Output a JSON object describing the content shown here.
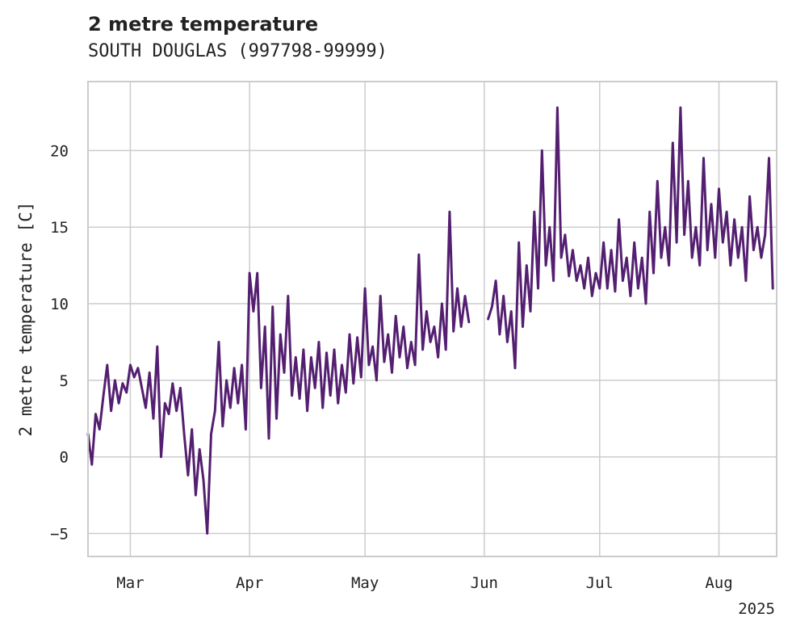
{
  "chart_data": {
    "type": "line",
    "title": "2 metre temperature",
    "subtitle": "SOUTH DOUGLAS (997798-99999)",
    "xlabel": "",
    "ylabel": "2 metre temperature [C]",
    "xlim": [
      "2025-02-18",
      "2025-08-16"
    ],
    "ylim": [
      -6.5,
      24.5
    ],
    "yticks": [
      -5,
      0,
      5,
      10,
      15,
      20
    ],
    "xticks": [
      {
        "date": "2025-03-01",
        "label": "Mar"
      },
      {
        "date": "2025-04-01",
        "label": "Apr"
      },
      {
        "date": "2025-05-01",
        "label": "May"
      },
      {
        "date": "2025-06-01",
        "label": "Jun"
      },
      {
        "date": "2025-07-01",
        "label": "Jul"
      },
      {
        "date": "2025-08-01",
        "label": "Aug"
      }
    ],
    "year_label": "2025",
    "grid": true,
    "line_color": "#541f70",
    "gap": [
      "2025-05-28",
      "2025-06-02"
    ],
    "series": [
      {
        "values": [
          [
            "2025-02-18",
            1.5
          ],
          [
            "2025-02-19",
            -0.5
          ],
          [
            "2025-02-20",
            2.8
          ],
          [
            "2025-02-21",
            1.8
          ],
          [
            "2025-02-22",
            4.0
          ],
          [
            "2025-02-23",
            6.0
          ],
          [
            "2025-02-24",
            3.0
          ],
          [
            "2025-02-25",
            5.0
          ],
          [
            "2025-02-26",
            3.5
          ],
          [
            "2025-02-27",
            4.8
          ],
          [
            "2025-02-28",
            4.2
          ],
          [
            "2025-03-01",
            6.0
          ],
          [
            "2025-03-02",
            5.2
          ],
          [
            "2025-03-03",
            5.8
          ],
          [
            "2025-03-04",
            4.5
          ],
          [
            "2025-03-05",
            3.2
          ],
          [
            "2025-03-06",
            5.5
          ],
          [
            "2025-03-07",
            2.5
          ],
          [
            "2025-03-08",
            7.2
          ],
          [
            "2025-03-09",
            0.0
          ],
          [
            "2025-03-10",
            3.5
          ],
          [
            "2025-03-11",
            2.8
          ],
          [
            "2025-03-12",
            4.8
          ],
          [
            "2025-03-13",
            3.0
          ],
          [
            "2025-03-14",
            4.5
          ],
          [
            "2025-03-15",
            1.5
          ],
          [
            "2025-03-16",
            -1.2
          ],
          [
            "2025-03-17",
            1.8
          ],
          [
            "2025-03-18",
            -2.5
          ],
          [
            "2025-03-19",
            0.5
          ],
          [
            "2025-03-20",
            -1.5
          ],
          [
            "2025-03-21",
            -5.0
          ],
          [
            "2025-03-22",
            1.5
          ],
          [
            "2025-03-23",
            3.0
          ],
          [
            "2025-03-24",
            7.5
          ],
          [
            "2025-03-25",
            2.0
          ],
          [
            "2025-03-26",
            5.0
          ],
          [
            "2025-03-27",
            3.2
          ],
          [
            "2025-03-28",
            5.8
          ],
          [
            "2025-03-29",
            3.5
          ],
          [
            "2025-03-30",
            6.0
          ],
          [
            "2025-03-31",
            1.8
          ],
          [
            "2025-04-01",
            12.0
          ],
          [
            "2025-04-02",
            9.5
          ],
          [
            "2025-04-03",
            12.0
          ],
          [
            "2025-04-04",
            4.5
          ],
          [
            "2025-04-05",
            8.5
          ],
          [
            "2025-04-06",
            1.2
          ],
          [
            "2025-04-07",
            9.8
          ],
          [
            "2025-04-08",
            2.5
          ],
          [
            "2025-04-09",
            8.0
          ],
          [
            "2025-04-10",
            5.5
          ],
          [
            "2025-04-11",
            10.5
          ],
          [
            "2025-04-12",
            4.0
          ],
          [
            "2025-04-13",
            6.5
          ],
          [
            "2025-04-14",
            3.8
          ],
          [
            "2025-04-15",
            7.0
          ],
          [
            "2025-04-16",
            3.0
          ],
          [
            "2025-04-17",
            6.5
          ],
          [
            "2025-04-18",
            4.5
          ],
          [
            "2025-04-19",
            7.5
          ],
          [
            "2025-04-20",
            3.2
          ],
          [
            "2025-04-21",
            6.8
          ],
          [
            "2025-04-22",
            4.0
          ],
          [
            "2025-04-23",
            7.0
          ],
          [
            "2025-04-24",
            3.5
          ],
          [
            "2025-04-25",
            6.0
          ],
          [
            "2025-04-26",
            4.2
          ],
          [
            "2025-04-27",
            8.0
          ],
          [
            "2025-04-28",
            4.8
          ],
          [
            "2025-04-29",
            7.8
          ],
          [
            "2025-04-30",
            5.2
          ],
          [
            "2025-05-01",
            11.0
          ],
          [
            "2025-05-02",
            6.0
          ],
          [
            "2025-05-03",
            7.2
          ],
          [
            "2025-05-04",
            5.0
          ],
          [
            "2025-05-05",
            10.5
          ],
          [
            "2025-05-06",
            6.2
          ],
          [
            "2025-05-07",
            8.0
          ],
          [
            "2025-05-08",
            5.5
          ],
          [
            "2025-05-09",
            9.2
          ],
          [
            "2025-05-10",
            6.5
          ],
          [
            "2025-05-11",
            8.5
          ],
          [
            "2025-05-12",
            5.8
          ],
          [
            "2025-05-13",
            7.5
          ],
          [
            "2025-05-14",
            6.0
          ],
          [
            "2025-05-15",
            13.2
          ],
          [
            "2025-05-16",
            7.0
          ],
          [
            "2025-05-17",
            9.5
          ],
          [
            "2025-05-18",
            7.5
          ],
          [
            "2025-05-19",
            8.5
          ],
          [
            "2025-05-20",
            6.5
          ],
          [
            "2025-05-21",
            10.0
          ],
          [
            "2025-05-22",
            7.0
          ],
          [
            "2025-05-23",
            16.0
          ],
          [
            "2025-05-24",
            8.2
          ],
          [
            "2025-05-25",
            11.0
          ],
          [
            "2025-05-26",
            8.5
          ],
          [
            "2025-05-27",
            10.5
          ],
          [
            "2025-05-28",
            8.8
          ],
          [
            "2025-06-02",
            9.0
          ],
          [
            "2025-06-03",
            9.8
          ],
          [
            "2025-06-04",
            11.5
          ],
          [
            "2025-06-05",
            8.0
          ],
          [
            "2025-06-06",
            10.5
          ],
          [
            "2025-06-07",
            7.5
          ],
          [
            "2025-06-08",
            9.5
          ],
          [
            "2025-06-09",
            5.8
          ],
          [
            "2025-06-10",
            14.0
          ],
          [
            "2025-06-11",
            8.5
          ],
          [
            "2025-06-12",
            12.5
          ],
          [
            "2025-06-13",
            9.5
          ],
          [
            "2025-06-14",
            16.0
          ],
          [
            "2025-06-15",
            11.0
          ],
          [
            "2025-06-16",
            20.0
          ],
          [
            "2025-06-17",
            12.5
          ],
          [
            "2025-06-18",
            15.0
          ],
          [
            "2025-06-19",
            11.5
          ],
          [
            "2025-06-20",
            22.8
          ],
          [
            "2025-06-21",
            13.0
          ],
          [
            "2025-06-22",
            14.5
          ],
          [
            "2025-06-23",
            11.8
          ],
          [
            "2025-06-24",
            13.5
          ],
          [
            "2025-06-25",
            11.5
          ],
          [
            "2025-06-26",
            12.5
          ],
          [
            "2025-06-27",
            11.0
          ],
          [
            "2025-06-28",
            13.0
          ],
          [
            "2025-06-29",
            10.5
          ],
          [
            "2025-06-30",
            12.0
          ],
          [
            "2025-07-01",
            11.0
          ],
          [
            "2025-07-02",
            14.0
          ],
          [
            "2025-07-03",
            11.0
          ],
          [
            "2025-07-04",
            13.5
          ],
          [
            "2025-07-05",
            10.8
          ],
          [
            "2025-07-06",
            15.5
          ],
          [
            "2025-07-07",
            11.5
          ],
          [
            "2025-07-08",
            13.0
          ],
          [
            "2025-07-09",
            10.5
          ],
          [
            "2025-07-10",
            14.0
          ],
          [
            "2025-07-11",
            11.0
          ],
          [
            "2025-07-12",
            13.0
          ],
          [
            "2025-07-13",
            10.0
          ],
          [
            "2025-07-14",
            16.0
          ],
          [
            "2025-07-15",
            12.0
          ],
          [
            "2025-07-16",
            18.0
          ],
          [
            "2025-07-17",
            13.0
          ],
          [
            "2025-07-18",
            15.0
          ],
          [
            "2025-07-19",
            12.5
          ],
          [
            "2025-07-20",
            20.5
          ],
          [
            "2025-07-21",
            14.0
          ],
          [
            "2025-07-22",
            22.8
          ],
          [
            "2025-07-23",
            14.5
          ],
          [
            "2025-07-24",
            18.0
          ],
          [
            "2025-07-25",
            13.0
          ],
          [
            "2025-07-26",
            15.0
          ],
          [
            "2025-07-27",
            12.5
          ],
          [
            "2025-07-28",
            19.5
          ],
          [
            "2025-07-29",
            13.5
          ],
          [
            "2025-07-30",
            16.5
          ],
          [
            "2025-07-31",
            13.0
          ],
          [
            "2025-08-01",
            17.5
          ],
          [
            "2025-08-02",
            14.0
          ],
          [
            "2025-08-03",
            16.0
          ],
          [
            "2025-08-04",
            12.5
          ],
          [
            "2025-08-05",
            15.5
          ],
          [
            "2025-08-06",
            13.0
          ],
          [
            "2025-08-07",
            15.0
          ],
          [
            "2025-08-08",
            11.5
          ],
          [
            "2025-08-09",
            17.0
          ],
          [
            "2025-08-10",
            13.5
          ],
          [
            "2025-08-11",
            15.0
          ],
          [
            "2025-08-12",
            13.0
          ],
          [
            "2025-08-13",
            14.5
          ],
          [
            "2025-08-14",
            19.5
          ],
          [
            "2025-08-15",
            11.0
          ]
        ]
      }
    ]
  }
}
